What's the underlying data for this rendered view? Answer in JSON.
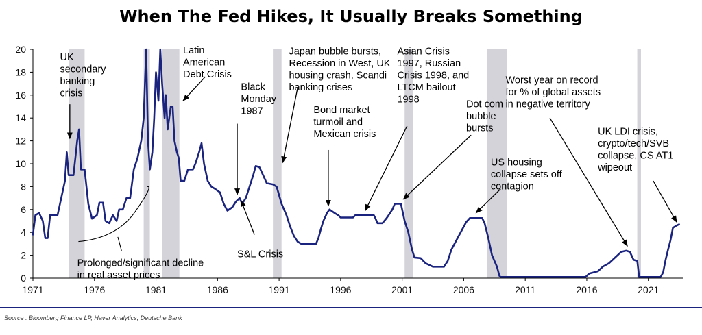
{
  "chart_data": {
    "type": "line",
    "title": "When The Fed Hikes, It Usually Breaks Something",
    "source": "Source : Bloomberg Finance LP, Haver Analytics, Deutsche Bank",
    "xlabel": "",
    "ylabel": "",
    "xlim": [
      1971,
      2023.8
    ],
    "ylim": [
      0,
      20
    ],
    "x_ticks": [
      1971,
      1976,
      1981,
      1986,
      1991,
      1996,
      2001,
      2006,
      2011,
      2016,
      2021
    ],
    "y_ticks": [
      0,
      2,
      4,
      6,
      8,
      10,
      12,
      14,
      16,
      18,
      20
    ],
    "grid": false,
    "line_color": "#1a237e",
    "band_color": "#d3d3d9",
    "recession_bands": [
      [
        1973.9,
        1975.2
      ],
      [
        1980.0,
        1980.5
      ],
      [
        1981.5,
        1982.9
      ],
      [
        1990.5,
        1991.2
      ],
      [
        2001.2,
        2001.9
      ],
      [
        2007.9,
        2009.5
      ],
      [
        2020.1,
        2020.4
      ]
    ],
    "series": [
      {
        "points": [
          [
            1971.0,
            3.8
          ],
          [
            1971.2,
            5.5
          ],
          [
            1971.5,
            5.7
          ],
          [
            1971.8,
            5.0
          ],
          [
            1972.0,
            3.5
          ],
          [
            1972.2,
            3.5
          ],
          [
            1972.4,
            5.5
          ],
          [
            1973.0,
            5.5
          ],
          [
            1973.3,
            7.0
          ],
          [
            1973.6,
            8.5
          ],
          [
            1973.75,
            11.0
          ],
          [
            1973.9,
            9.0
          ],
          [
            1974.3,
            9.0
          ],
          [
            1974.6,
            12.0
          ],
          [
            1974.75,
            13.0
          ],
          [
            1974.9,
            9.5
          ],
          [
            1975.2,
            9.5
          ],
          [
            1975.5,
            6.5
          ],
          [
            1975.8,
            5.2
          ],
          [
            1976.2,
            5.5
          ],
          [
            1976.4,
            6.6
          ],
          [
            1976.7,
            6.6
          ],
          [
            1976.9,
            5.0
          ],
          [
            1977.2,
            4.8
          ],
          [
            1977.5,
            5.5
          ],
          [
            1977.8,
            5.0
          ],
          [
            1978.0,
            6.0
          ],
          [
            1978.3,
            6.0
          ],
          [
            1978.6,
            7.0
          ],
          [
            1978.9,
            7.0
          ],
          [
            1979.2,
            9.5
          ],
          [
            1979.5,
            10.5
          ],
          [
            1979.8,
            12.0
          ],
          [
            1980.0,
            14.0
          ],
          [
            1980.2,
            20.0
          ],
          [
            1980.35,
            12.0
          ],
          [
            1980.5,
            9.5
          ],
          [
            1980.7,
            11.0
          ],
          [
            1980.85,
            14.0
          ],
          [
            1981.0,
            18.0
          ],
          [
            1981.2,
            15.5
          ],
          [
            1981.35,
            20.0
          ],
          [
            1981.5,
            17.0
          ],
          [
            1981.7,
            14.0
          ],
          [
            1981.8,
            16.0
          ],
          [
            1981.95,
            13.0
          ],
          [
            1982.2,
            15.0
          ],
          [
            1982.35,
            15.0
          ],
          [
            1982.5,
            12.0
          ],
          [
            1982.7,
            11.0
          ],
          [
            1982.85,
            10.5
          ],
          [
            1983.0,
            8.5
          ],
          [
            1983.3,
            8.5
          ],
          [
            1983.6,
            9.5
          ],
          [
            1984.0,
            9.5
          ],
          [
            1984.2,
            10.0
          ],
          [
            1984.5,
            11.0
          ],
          [
            1984.7,
            11.8
          ],
          [
            1984.9,
            10.0
          ],
          [
            1985.2,
            8.5
          ],
          [
            1985.5,
            8.0
          ],
          [
            1985.8,
            7.8
          ],
          [
            1986.2,
            7.5
          ],
          [
            1986.5,
            6.5
          ],
          [
            1986.8,
            5.9
          ],
          [
            1987.2,
            6.2
          ],
          [
            1987.5,
            6.7
          ],
          [
            1987.8,
            7.0
          ],
          [
            1988.0,
            6.5
          ],
          [
            1988.3,
            7.0
          ],
          [
            1988.6,
            8.0
          ],
          [
            1988.9,
            9.0
          ],
          [
            1989.1,
            9.8
          ],
          [
            1989.4,
            9.7
          ],
          [
            1989.7,
            9.0
          ],
          [
            1990.0,
            8.3
          ],
          [
            1990.5,
            8.2
          ],
          [
            1990.8,
            8.0
          ],
          [
            1991.2,
            6.5
          ],
          [
            1991.6,
            5.5
          ],
          [
            1991.9,
            4.5
          ],
          [
            1992.2,
            3.7
          ],
          [
            1992.5,
            3.2
          ],
          [
            1992.8,
            3.0
          ],
          [
            1993.5,
            3.0
          ],
          [
            1994.0,
            3.0
          ],
          [
            1994.2,
            3.5
          ],
          [
            1994.4,
            4.3
          ],
          [
            1994.6,
            5.0
          ],
          [
            1994.9,
            5.7
          ],
          [
            1995.1,
            6.0
          ],
          [
            1995.5,
            5.7
          ],
          [
            1995.8,
            5.5
          ],
          [
            1996.0,
            5.3
          ],
          [
            1996.5,
            5.3
          ],
          [
            1997.0,
            5.3
          ],
          [
            1997.2,
            5.5
          ],
          [
            1998.0,
            5.5
          ],
          [
            1998.7,
            5.5
          ],
          [
            1998.8,
            5.3
          ],
          [
            1999.0,
            4.8
          ],
          [
            1999.4,
            4.8
          ],
          [
            1999.7,
            5.2
          ],
          [
            1999.9,
            5.5
          ],
          [
            2000.2,
            6.0
          ],
          [
            2000.4,
            6.5
          ],
          [
            2000.9,
            6.5
          ],
          [
            2001.2,
            5.0
          ],
          [
            2001.5,
            4.0
          ],
          [
            2001.8,
            2.5
          ],
          [
            2002.0,
            1.8
          ],
          [
            2002.5,
            1.75
          ],
          [
            2002.9,
            1.3
          ],
          [
            2003.5,
            1.0
          ],
          [
            2004.4,
            1.0
          ],
          [
            2004.7,
            1.5
          ],
          [
            2005.0,
            2.5
          ],
          [
            2005.5,
            3.5
          ],
          [
            2005.9,
            4.3
          ],
          [
            2006.2,
            4.9
          ],
          [
            2006.5,
            5.25
          ],
          [
            2007.5,
            5.25
          ],
          [
            2007.7,
            4.8
          ],
          [
            2008.0,
            3.5
          ],
          [
            2008.3,
            2.0
          ],
          [
            2008.7,
            1.0
          ],
          [
            2008.9,
            0.2
          ],
          [
            2009.0,
            0.1
          ],
          [
            2015.9,
            0.1
          ],
          [
            2016.2,
            0.4
          ],
          [
            2016.9,
            0.6
          ],
          [
            2017.3,
            1.0
          ],
          [
            2017.8,
            1.3
          ],
          [
            2018.3,
            1.8
          ],
          [
            2018.8,
            2.3
          ],
          [
            2019.2,
            2.4
          ],
          [
            2019.5,
            2.3
          ],
          [
            2019.8,
            1.6
          ],
          [
            2020.1,
            1.5
          ],
          [
            2020.25,
            0.1
          ],
          [
            2022.0,
            0.1
          ],
          [
            2022.2,
            0.5
          ],
          [
            2022.4,
            1.6
          ],
          [
            2022.6,
            2.5
          ],
          [
            2022.8,
            3.3
          ],
          [
            2023.0,
            4.4
          ],
          [
            2023.3,
            4.6
          ],
          [
            2023.5,
            4.7
          ]
        ]
      }
    ],
    "annotations": [
      {
        "id": "uk-secondary",
        "lines": [
          "UK",
          "secondary",
          "banking",
          "crisis"
        ],
        "x": 1973.2,
        "y": 19.4,
        "arrow_from": [
          1974.0,
          15.2
        ],
        "arrow_to": [
          1974.0,
          12.2
        ]
      },
      {
        "id": "latin-american",
        "lines": [
          "Latin",
          "American",
          "Debt Crisis"
        ],
        "x": 1983.2,
        "y": 20.0,
        "arrow_from": [
          1985.0,
          17.6
        ],
        "arrow_to": [
          1983.2,
          15.5
        ]
      },
      {
        "id": "black-monday",
        "lines": [
          "Black",
          "Monday",
          "1987"
        ],
        "x": 1987.9,
        "y": 16.8,
        "arrow_from": [
          1987.6,
          13.5
        ],
        "arrow_to": [
          1987.6,
          7.3
        ]
      },
      {
        "id": "japan-bubble",
        "lines": [
          "Japan bubble bursts,",
          "Recession in West, UK",
          "housing crash, Scandi",
          "banking crises"
        ],
        "x": 1991.8,
        "y": 19.9,
        "arrow_from": [
          1992.5,
          16.6
        ],
        "arrow_to": [
          1991.3,
          10.1
        ]
      },
      {
        "id": "bond-market",
        "lines": [
          "Bond market",
          "turmoil and",
          "Mexican crisis"
        ],
        "x": 1993.8,
        "y": 14.8,
        "arrow_from": [
          1995.0,
          11.2
        ],
        "arrow_to": [
          1995.0,
          6.3
        ]
      },
      {
        "id": "asian-crisis",
        "lines": [
          "Asian Crisis",
          "1997, Russian",
          "Crisis 1998, and",
          "LTCM bailout",
          "1998"
        ],
        "x": 2000.6,
        "y": 19.9,
        "arrow_from": [
          2001.4,
          13.3
        ],
        "arrow_to": [
          1998.0,
          5.9
        ]
      },
      {
        "id": "dot-com",
        "lines": [
          "Dot com",
          "bubble",
          "bursts"
        ],
        "x": 2006.2,
        "y": 15.3,
        "arrow_from": [
          2006.6,
          12.5
        ],
        "arrow_to": [
          2001.1,
          6.9
        ]
      },
      {
        "id": "us-housing",
        "lines": [
          "US housing",
          "collapse sets off",
          "contagion"
        ],
        "x": 2008.2,
        "y": 10.2,
        "arrow_from": [
          2009.0,
          7.8
        ],
        "arrow_to": [
          2007.0,
          5.7
        ]
      },
      {
        "id": "worst-year",
        "lines": [
          "Worst year on record",
          "for % of global assets",
          "in negative territory"
        ],
        "x": 2009.4,
        "y": 17.4,
        "arrow_from": [
          2013.0,
          14.0
        ],
        "arrow_to": [
          2019.3,
          2.8
        ]
      },
      {
        "id": "uk-ldi",
        "lines": [
          "UK LDI crisis,",
          "crypto/tech/SVB",
          "collapse, CS AT1",
          "wipeout"
        ],
        "x": 2016.9,
        "y": 12.9,
        "arrow_from": [
          2021.4,
          8.5
        ],
        "arrow_to": [
          2023.3,
          4.9
        ]
      },
      {
        "id": "sl-crisis",
        "lines": [
          "S&L Crisis"
        ],
        "x": 1987.6,
        "y": 2.2,
        "arrow_from": [
          1989.0,
          3.8
        ],
        "arrow_to": [
          1987.9,
          6.8
        ]
      },
      {
        "id": "prolonged",
        "lines": [
          "Prolonged/significant decline",
          "in real asset prices"
        ],
        "x": 1974.6,
        "y": 1.4,
        "arrow_from": [
          1977.1,
          2.4
        ],
        "arrow_to": [
          1977.1,
          2.4
        ]
      }
    ]
  }
}
